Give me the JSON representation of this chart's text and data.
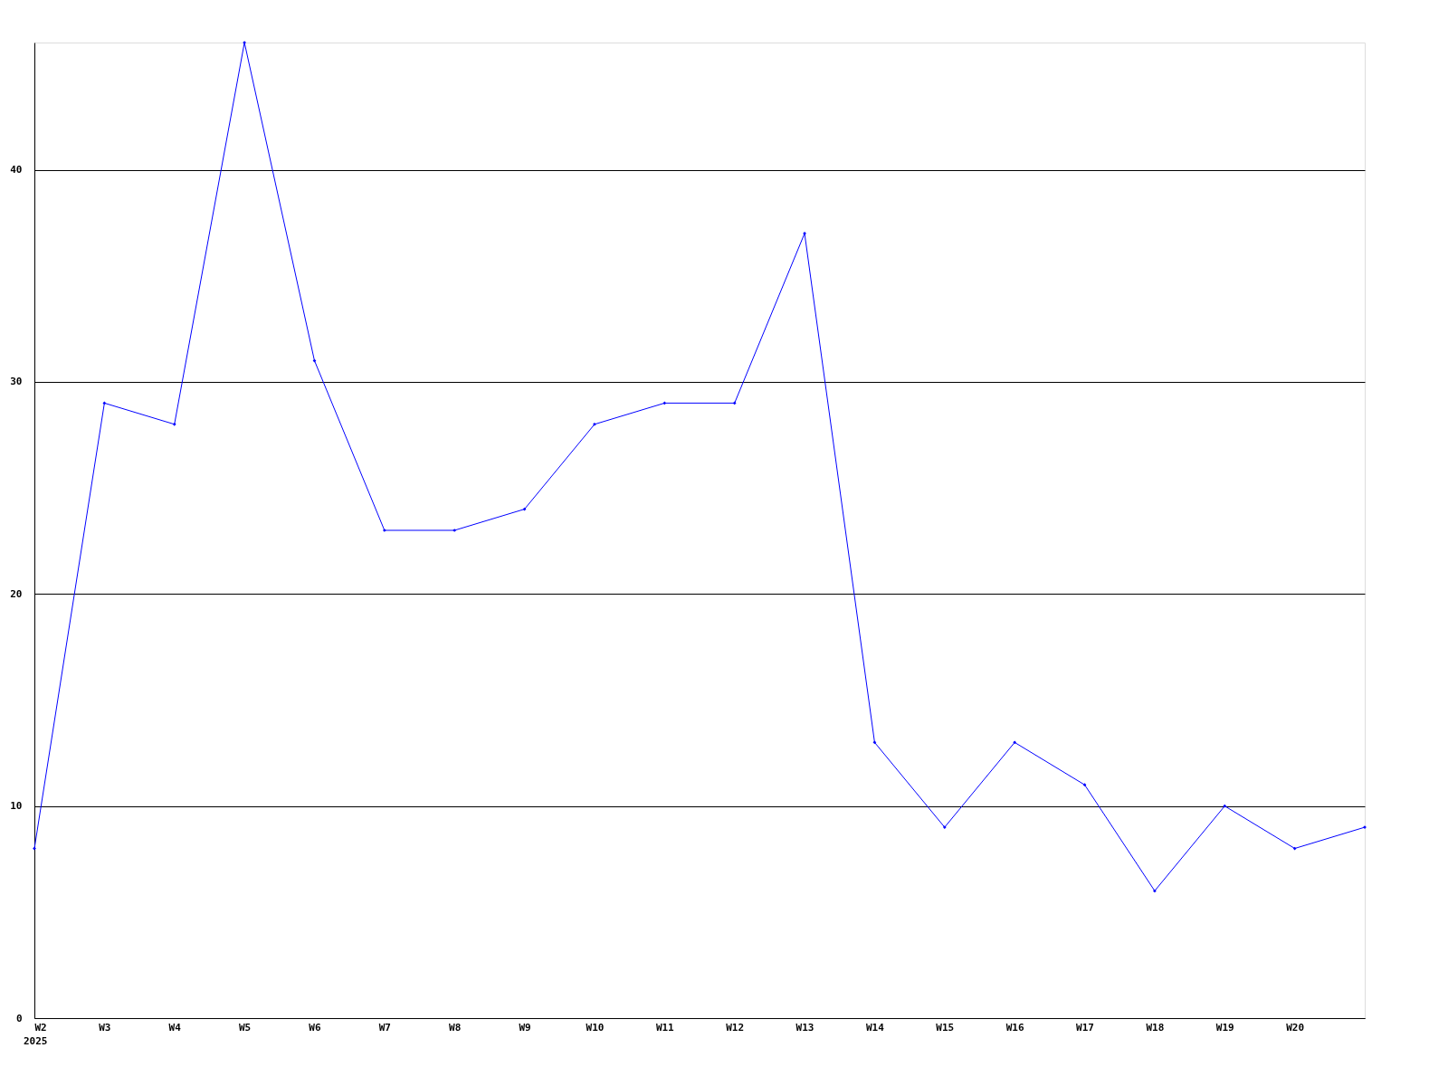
{
  "chart_data": {
    "type": "line",
    "categories": [
      "W2",
      "W3",
      "W4",
      "W5",
      "W6",
      "W7",
      "W8",
      "W9",
      "W10",
      "W11",
      "W12",
      "W13",
      "W14",
      "W15",
      "W16",
      "W17",
      "W18",
      "W19",
      "W20",
      null
    ],
    "series": [
      {
        "color": "#0000ff",
        "values": [
          8,
          29,
          28,
          46,
          31,
          23,
          23,
          24,
          28,
          29,
          29,
          37,
          13,
          9,
          13,
          11,
          6,
          10,
          8,
          9
        ]
      }
    ],
    "ylim": [
      0,
      46
    ],
    "yticks": [
      0,
      10,
      20,
      30,
      40
    ],
    "grid": "y",
    "marker": "diamond",
    "line_style": "solid",
    "annotations": [
      "2025"
    ]
  }
}
